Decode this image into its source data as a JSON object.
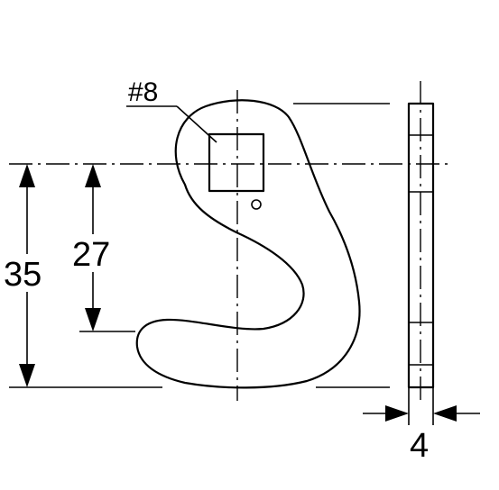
{
  "labels": {
    "hole_size": "#8",
    "dim_overall_height": "35",
    "dim_to_center": "27",
    "dim_thickness": "4"
  },
  "colors": {
    "line": "#000000",
    "background": "#ffffff"
  }
}
